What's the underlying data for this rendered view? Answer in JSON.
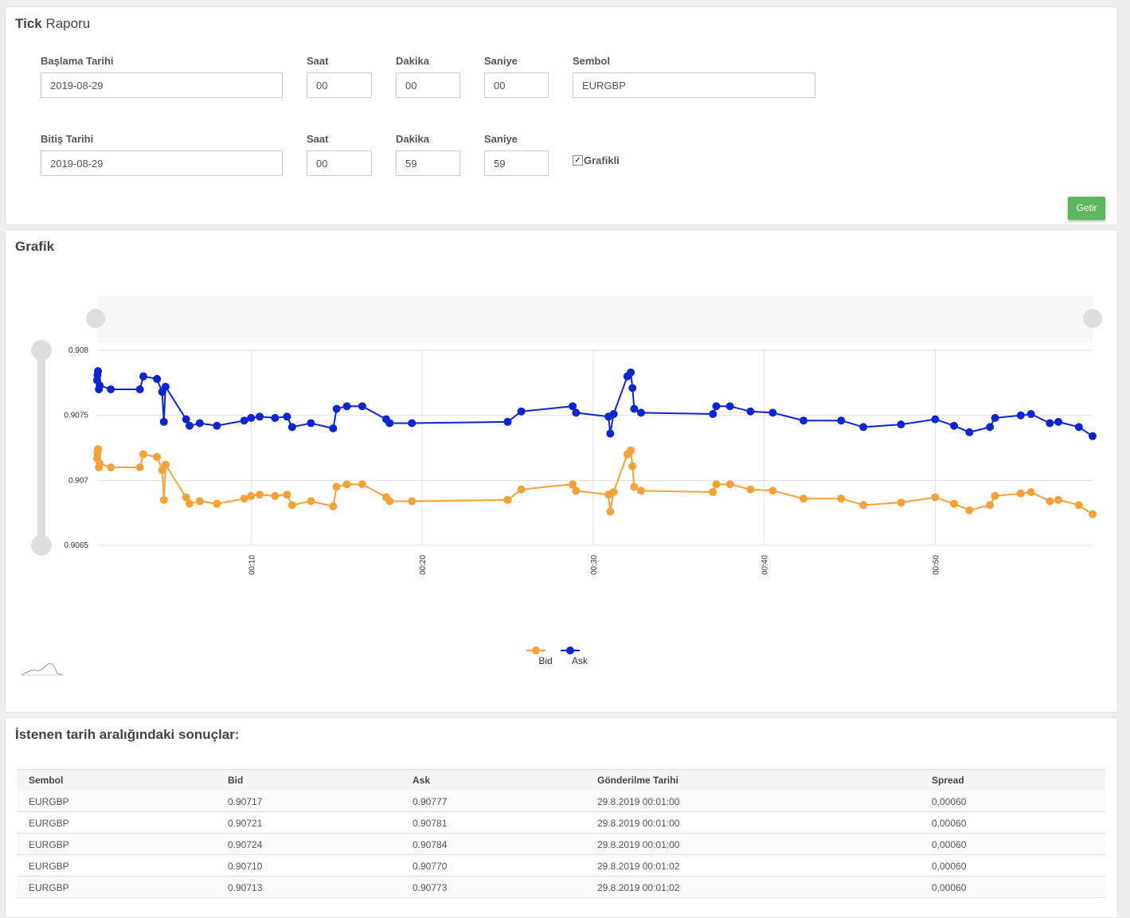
{
  "header": {
    "title_strong": "Tick",
    "title": "Raporu"
  },
  "form": {
    "rows": [
      [
        {
          "label": "Başlama Tarihi",
          "value": "2019-08-29"
        },
        {
          "label": "Saat",
          "value": "00"
        },
        {
          "label": "Dakika",
          "value": "00"
        },
        {
          "label": "Saniye",
          "value": "00"
        },
        {
          "label": "Sembol",
          "value": "EURGBP"
        }
      ],
      [
        {
          "label": "Bitiş Tarihi",
          "value": "2019-08-29"
        },
        {
          "label": "Saat",
          "value": "00"
        },
        {
          "label": "Dakika",
          "value": "59"
        },
        {
          "label": "Saniye",
          "value": "59"
        }
      ]
    ],
    "checkbox": {
      "label": "Grafikli",
      "checked": true
    },
    "button": "Getir"
  },
  "chart_panel": {
    "title": "Grafik"
  },
  "chart_data": {
    "type": "line",
    "x": [
      1,
      1.02,
      1.05,
      1.1,
      1.15,
      1.8,
      3.5,
      3.7,
      4.5,
      4.8,
      4.9,
      5.0,
      6.2,
      6.4,
      7.0,
      8.0,
      9.6,
      10.0,
      10.5,
      11.4,
      12.1,
      12.4,
      13.5,
      14.8,
      15.0,
      15.6,
      16.5,
      17.9,
      18.1,
      19.4,
      25.0,
      25.8,
      28.8,
      29.0,
      30.9,
      31.0,
      31.2,
      32.0,
      32.2,
      32.3,
      32.4,
      32.8,
      37.0,
      37.2,
      38.0,
      39.2,
      40.5,
      42.3,
      44.5,
      45.8,
      48.0,
      50.0,
      51.1,
      52.0,
      53.2,
      53.5,
      55.0,
      55.6,
      56.7,
      57.2,
      58.4,
      59.2
    ],
    "series": [
      {
        "name": "Bid",
        "color": "#f7a035",
        "values": [
          0.90717,
          0.90721,
          0.90724,
          0.9071,
          0.90713,
          0.9071,
          0.9071,
          0.9072,
          0.90718,
          0.90708,
          0.90685,
          0.90712,
          0.90687,
          0.90682,
          0.90684,
          0.90682,
          0.90686,
          0.90688,
          0.90689,
          0.90688,
          0.90689,
          0.90681,
          0.90684,
          0.9068,
          0.90695,
          0.90697,
          0.90697,
          0.90687,
          0.90684,
          0.90684,
          0.90685,
          0.90693,
          0.90697,
          0.90692,
          0.90689,
          0.90676,
          0.90691,
          0.9072,
          0.90723,
          0.90711,
          0.90695,
          0.90692,
          0.90691,
          0.90697,
          0.90697,
          0.90693,
          0.90692,
          0.90686,
          0.90686,
          0.90681,
          0.90683,
          0.90687,
          0.90682,
          0.90677,
          0.90681,
          0.90688,
          0.9069,
          0.90691,
          0.90684,
          0.90685,
          0.90681,
          0.90674
        ]
      },
      {
        "name": "Ask",
        "color": "#0a24d6",
        "values": [
          0.90777,
          0.90781,
          0.90784,
          0.9077,
          0.90773,
          0.9077,
          0.9077,
          0.9078,
          0.90778,
          0.90768,
          0.90745,
          0.90772,
          0.90747,
          0.90742,
          0.90744,
          0.90742,
          0.90746,
          0.90748,
          0.90749,
          0.90748,
          0.90749,
          0.90741,
          0.90744,
          0.9074,
          0.90755,
          0.90757,
          0.90757,
          0.90747,
          0.90744,
          0.90744,
          0.90745,
          0.90753,
          0.90757,
          0.90752,
          0.90749,
          0.90736,
          0.90751,
          0.9078,
          0.90783,
          0.90771,
          0.90755,
          0.90752,
          0.90751,
          0.90757,
          0.90757,
          0.90753,
          0.90752,
          0.90746,
          0.90746,
          0.90741,
          0.90743,
          0.90747,
          0.90742,
          0.90737,
          0.90741,
          0.90748,
          0.9075,
          0.90751,
          0.90744,
          0.90745,
          0.90741,
          0.90734
        ]
      }
    ],
    "xlim": [
      1,
      59.2
    ],
    "xticks": [
      {
        "value": 10,
        "label": "00:10"
      },
      {
        "value": 20,
        "label": "00:20"
      },
      {
        "value": 30,
        "label": "00:30"
      },
      {
        "value": 40,
        "label": "00:40"
      },
      {
        "value": 50,
        "label": "00:50"
      }
    ],
    "ylim": [
      0.9065,
      0.908
    ],
    "yticks": [
      0.9065,
      0.907,
      0.9075,
      0.908
    ],
    "grid": true,
    "legend": "bottom"
  },
  "results": {
    "title": "İstenen tarih aralığındaki sonuçlar:",
    "columns": [
      "Sembol",
      "Bid",
      "Ask",
      "Gönderilme Tarihi",
      "Spread"
    ],
    "rows": [
      [
        "EURGBP",
        "0.90717",
        "0.90777",
        "29.8.2019 00:01:00",
        "0,00060"
      ],
      [
        "EURGBP",
        "0.90721",
        "0.90781",
        "29.8.2019 00:01:00",
        "0,00060"
      ],
      [
        "EURGBP",
        "0.90724",
        "0.90784",
        "29.8.2019 00:01:00",
        "0,00060"
      ],
      [
        "EURGBP",
        "0.90710",
        "0.90770",
        "29.8.2019 00:01:02",
        "0,00060"
      ],
      [
        "EURGBP",
        "0.90713",
        "0.90773",
        "29.8.2019 00:01:02",
        "0,00060"
      ]
    ]
  }
}
